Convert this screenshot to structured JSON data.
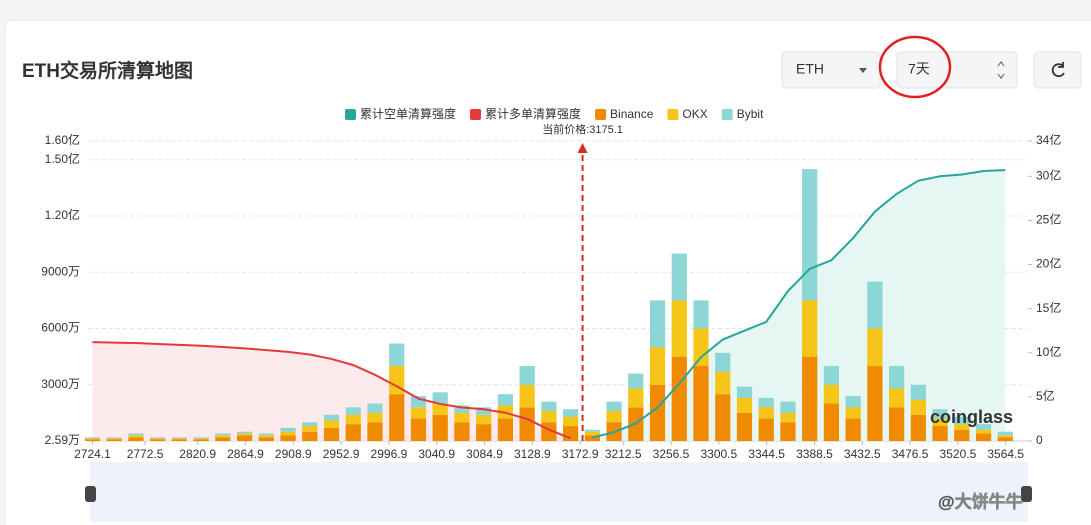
{
  "header": {
    "title": "ETH交易所清算地图"
  },
  "controls": {
    "symbol": "ETH",
    "period": "7天"
  },
  "watermark": "coinglass",
  "credit": "@大饼牛牛",
  "chart_data": {
    "type": "bar",
    "stacked": true,
    "current_price": 3175.1,
    "current_price_label": "当前价格:3175.1",
    "x": [
      2724.1,
      2744.1,
      2764.1,
      2784.1,
      2804.1,
      2824.1,
      2844.1,
      2864.1,
      2884.1,
      2904.1,
      2924.1,
      2944.1,
      2964.1,
      2984.1,
      3004.1,
      3024.1,
      3044.1,
      3064.1,
      3084.1,
      3104.1,
      3124.1,
      3144.1,
      3164.1,
      3184.1,
      3204.1,
      3224.1,
      3244.1,
      3264.1,
      3284.1,
      3304.1,
      3324.1,
      3344.1,
      3364.1,
      3384.1,
      3404.1,
      3424.1,
      3444.1,
      3464.1,
      3484.1,
      3504.1,
      3524.1,
      3544.1,
      3564.1
    ],
    "xlim": [
      2720,
      3585
    ],
    "xticks": [
      2724.1,
      2772.5,
      2820.9,
      2864.9,
      2908.9,
      2952.9,
      2996.9,
      3040.9,
      3084.9,
      3128.9,
      3172.9,
      3212.5,
      3256.5,
      3300.5,
      3344.5,
      3388.5,
      3432.5,
      3476.5,
      3520.5,
      3564.5
    ],
    "ylim": [
      25900,
      160000000
    ],
    "yticks": [
      {
        "value": 25900,
        "label": "2.59万"
      },
      {
        "value": 30000000,
        "label": "3000万"
      },
      {
        "value": 60000000,
        "label": "6000万"
      },
      {
        "value": 90000000,
        "label": "9000万"
      },
      {
        "value": 120000000,
        "label": "1.20亿"
      },
      {
        "value": 150000000,
        "label": "1.50亿"
      },
      {
        "value": 160000000,
        "label": "1.60亿"
      }
    ],
    "y2lim": [
      0,
      3400000000
    ],
    "y2ticks": [
      0,
      {
        "value": 500000000,
        "label": "5亿"
      },
      {
        "value": 1000000000,
        "label": "10亿"
      },
      {
        "value": 1500000000,
        "label": "15亿"
      },
      {
        "value": 2000000000,
        "label": "20亿"
      },
      {
        "value": 2500000000,
        "label": "25亿"
      },
      {
        "value": 3000000000,
        "label": "30亿"
      },
      {
        "value": 3400000000,
        "label": "34亿"
      }
    ],
    "grid": true,
    "series": [
      {
        "name": "累计空单清算强度",
        "type": "line",
        "axis": "y2",
        "color": "#26a69a",
        "fill": "#e3f5f1",
        "values": [
          null,
          null,
          null,
          null,
          null,
          null,
          null,
          null,
          null,
          null,
          null,
          null,
          null,
          null,
          null,
          null,
          null,
          null,
          null,
          null,
          null,
          null,
          null,
          40000000,
          100000000,
          200000000,
          380000000,
          650000000,
          950000000,
          1150000000,
          1250000000,
          1350000000,
          1700000000,
          1950000000,
          2050000000,
          2300000000,
          2600000000,
          2800000000,
          2950000000,
          3000000000,
          3020000000,
          3060000000,
          3070000000
        ]
      },
      {
        "name": "累计多单清算强度",
        "type": "line",
        "axis": "y2",
        "color": "#e23a3a",
        "fill": "#fce8ea",
        "values": [
          1120000000,
          1115000000,
          1110000000,
          1100000000,
          1090000000,
          1080000000,
          1065000000,
          1050000000,
          1030000000,
          1010000000,
          980000000,
          930000000,
          860000000,
          750000000,
          620000000,
          480000000,
          420000000,
          380000000,
          360000000,
          320000000,
          250000000,
          130000000,
          30000000,
          null,
          null,
          null,
          null,
          null,
          null,
          null,
          null,
          null,
          null,
          null,
          null,
          null,
          null,
          null,
          null,
          null,
          null,
          null,
          null
        ]
      },
      {
        "name": "Binance",
        "type": "bar",
        "color": "#f08a00",
        "values": [
          1000000,
          1000000,
          2000000,
          1000000,
          1000000,
          1000000,
          2000000,
          3000000,
          2000000,
          3000000,
          5000000,
          7000000,
          9000000,
          10000000,
          25000000,
          12000000,
          14000000,
          10000000,
          9000000,
          12000000,
          18000000,
          10000000,
          8000000,
          3000000,
          10000000,
          18000000,
          30000000,
          45000000,
          40000000,
          25000000,
          15000000,
          12000000,
          10000000,
          45000000,
          20000000,
          12000000,
          40000000,
          18000000,
          14000000,
          8000000,
          6000000,
          4000000,
          2000000
        ]
      },
      {
        "name": "OKX",
        "type": "bar",
        "color": "#f5c518",
        "values": [
          500000,
          500000,
          1000000,
          500000,
          500000,
          500000,
          1000000,
          1000000,
          1000000,
          2000000,
          3000000,
          4000000,
          5000000,
          5000000,
          15000000,
          6000000,
          6000000,
          5000000,
          5000000,
          7000000,
          12000000,
          6000000,
          5000000,
          2000000,
          6000000,
          10000000,
          20000000,
          30000000,
          20000000,
          12000000,
          8000000,
          6000000,
          5000000,
          30000000,
          10000000,
          6000000,
          20000000,
          10000000,
          8000000,
          4000000,
          3000000,
          2000000,
          1000000
        ]
      },
      {
        "name": "Bybit",
        "type": "bar",
        "color": "#8dd6d6",
        "values": [
          500000,
          500000,
          1000000,
          500000,
          500000,
          500000,
          1000000,
          1000000,
          1000000,
          2000000,
          2000000,
          3000000,
          4000000,
          5000000,
          12000000,
          6000000,
          6000000,
          4000000,
          4000000,
          6000000,
          10000000,
          5000000,
          4000000,
          1000000,
          5000000,
          8000000,
          25000000,
          25000000,
          15000000,
          10000000,
          6000000,
          5000000,
          6000000,
          70000000,
          10000000,
          6000000,
          25000000,
          12000000,
          8000000,
          5000000,
          4000000,
          3000000,
          2000000
        ]
      }
    ]
  }
}
